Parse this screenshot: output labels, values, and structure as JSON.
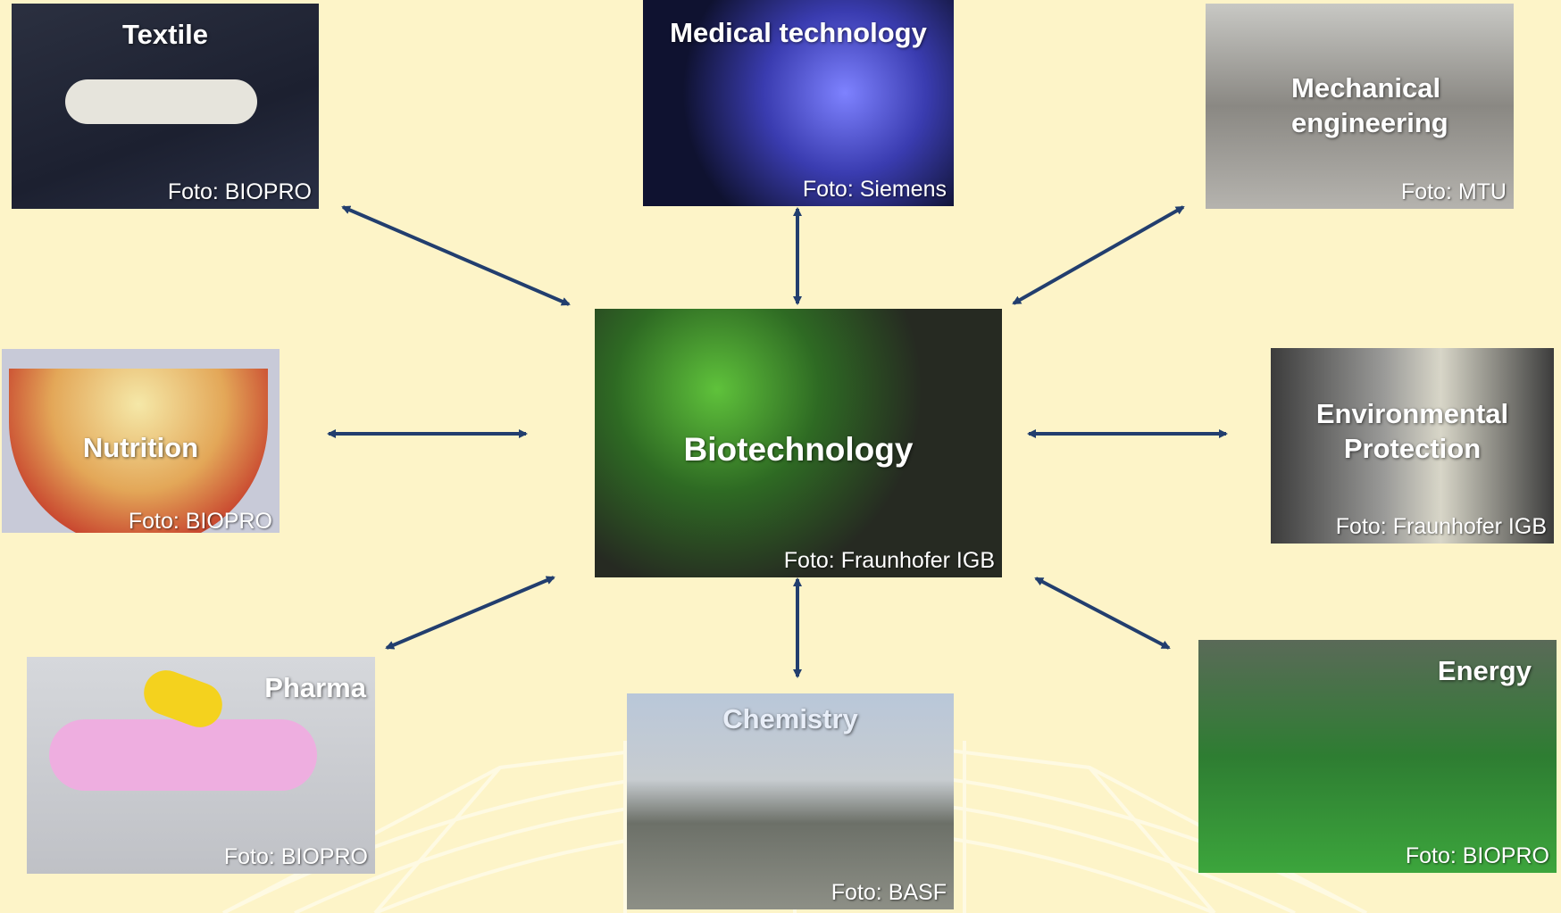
{
  "center": {
    "label": "Biotechnology",
    "credit": "Foto: Fraunhofer IGB"
  },
  "nodes": [
    {
      "label": "Textile",
      "credit": "Foto: BIOPRO"
    },
    {
      "label": "Medical technology",
      "credit": "Foto: Siemens"
    },
    {
      "label": "Mechanical engineering",
      "credit": "Foto: MTU"
    },
    {
      "label": "Nutrition",
      "credit": "Foto: BIOPRO"
    },
    {
      "label": "Environmental Protection",
      "credit": "Foto: Fraunhofer IGB"
    },
    {
      "label": "Pharma",
      "credit": "Foto: BIOPRO"
    },
    {
      "label": "Chemistry",
      "credit": "Foto: BASF"
    },
    {
      "label": "Energy",
      "credit": "Foto: BIOPRO"
    }
  ]
}
